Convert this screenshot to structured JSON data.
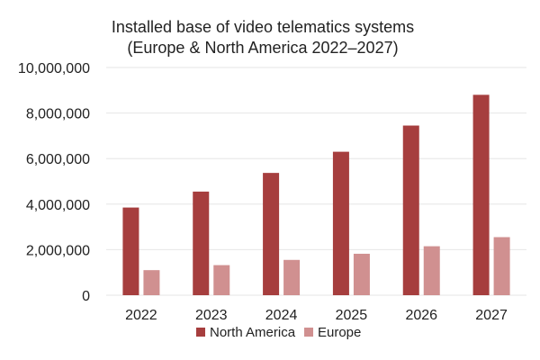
{
  "chart_data": {
    "type": "bar",
    "title": "Installed base of video telematics systems",
    "subtitle": "(Europe & North America 2022–2027)",
    "xlabel": "",
    "ylabel": "",
    "categories": [
      "2022",
      "2023",
      "2024",
      "2025",
      "2026",
      "2027"
    ],
    "series": [
      {
        "name": "North America",
        "color": "#a63e3e",
        "values": [
          3850000,
          4550000,
          5370000,
          6300000,
          7450000,
          8800000
        ]
      },
      {
        "name": "Europe",
        "color": "#d09090",
        "values": [
          1100000,
          1320000,
          1550000,
          1820000,
          2150000,
          2550000
        ]
      }
    ],
    "ylim": [
      0,
      10000000
    ],
    "yticks": [
      0,
      2000000,
      4000000,
      6000000,
      8000000,
      10000000
    ],
    "ytick_labels": [
      "0",
      "2,000,000",
      "4,000,000",
      "6,000,000",
      "8,000,000",
      "10,000,000"
    ],
    "grid": true,
    "legend_position": "bottom-center"
  }
}
